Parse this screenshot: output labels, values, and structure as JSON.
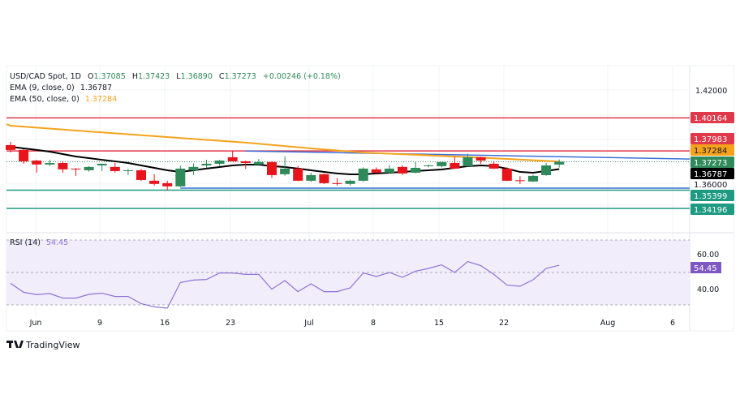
{
  "header": {
    "symbol": "USD/CAD Spot, 1D",
    "o_label": "O",
    "o": "1.37085",
    "h_label": "H",
    "h": "1.37423",
    "l_label": "L",
    "l": "1.36890",
    "c_label": "C",
    "c": "1.37273",
    "change": "+0.00246 (+0.18%)",
    "ema9_label": "EMA (9, close, 0)",
    "ema9_value": "1.36787",
    "ema50_label": "EMA (50, close, 0)",
    "ema50_value": "1.37284"
  },
  "rsi_header": {
    "label": "RSI (14)",
    "value": "54.45"
  },
  "brand": "TradingView",
  "colors": {
    "up": "#2f8a5a",
    "down": "#e8141c",
    "ema9": "#000000",
    "ema50": "#f7a21b",
    "resistance": "#e0394b",
    "support": "#1e9a82",
    "trend": "#3c6fd8",
    "rsi": "#8f74d6"
  },
  "chart_data": [
    {
      "type": "candlestick",
      "title": "USD/CAD Spot, 1D",
      "x_tick_labels": [
        "Jun",
        "9",
        "16",
        "23",
        "Jul",
        "8",
        "15",
        "22",
        "Aug",
        "6"
      ],
      "y_tick_labels": [
        "1.42000"
      ],
      "ohlc": [
        [
          1.3837,
          1.3858,
          1.3789,
          1.3805
        ],
        [
          1.3805,
          1.381,
          1.3714,
          1.373
        ],
        [
          1.3735,
          1.374,
          1.3655,
          1.3709
        ],
        [
          1.3709,
          1.374,
          1.37,
          1.3719
        ],
        [
          1.3719,
          1.373,
          1.3655,
          1.3677
        ],
        [
          1.3682,
          1.3685,
          1.3634,
          1.3677
        ],
        [
          1.3671,
          1.37,
          1.3662,
          1.3693
        ],
        [
          1.3703,
          1.3715,
          1.3665,
          1.3714
        ],
        [
          1.3693,
          1.372,
          1.3655,
          1.3666
        ],
        [
          1.3666,
          1.368,
          1.364,
          1.3671
        ],
        [
          1.3671,
          1.368,
          1.36,
          1.3607
        ],
        [
          1.3602,
          1.3645,
          1.357,
          1.3581
        ],
        [
          1.3586,
          1.3602,
          1.3538,
          1.3565
        ],
        [
          1.3565,
          1.37,
          1.356,
          1.3682
        ],
        [
          1.3671,
          1.3715,
          1.364,
          1.3693
        ],
        [
          1.3703,
          1.374,
          1.3685,
          1.3714
        ],
        [
          1.3714,
          1.374,
          1.37,
          1.3735
        ],
        [
          1.3757,
          1.38,
          1.373,
          1.373
        ],
        [
          1.373,
          1.3735,
          1.368,
          1.3719
        ],
        [
          1.3709,
          1.3745,
          1.37,
          1.3725
        ],
        [
          1.3725,
          1.373,
          1.362,
          1.3639
        ],
        [
          1.3645,
          1.3762,
          1.3635,
          1.3682
        ],
        [
          1.3682,
          1.37,
          1.36,
          1.3602
        ],
        [
          1.3602,
          1.3655,
          1.3595,
          1.3639
        ],
        [
          1.3645,
          1.365,
          1.358,
          1.3586
        ],
        [
          1.3586,
          1.362,
          1.357,
          1.3581
        ],
        [
          1.3581,
          1.361,
          1.357,
          1.3602
        ],
        [
          1.3602,
          1.369,
          1.3595,
          1.3682
        ],
        [
          1.3677,
          1.369,
          1.365,
          1.3655
        ],
        [
          1.3655,
          1.3705,
          1.365,
          1.3682
        ],
        [
          1.3693,
          1.3705,
          1.364,
          1.365
        ],
        [
          1.3655,
          1.3725,
          1.365,
          1.3687
        ],
        [
          1.3698,
          1.371,
          1.369,
          1.3703
        ],
        [
          1.3698,
          1.3725,
          1.369,
          1.3725
        ],
        [
          1.3719,
          1.376,
          1.368,
          1.3682
        ],
        [
          1.3698,
          1.378,
          1.3695,
          1.3757
        ],
        [
          1.3757,
          1.376,
          1.3714,
          1.3735
        ],
        [
          1.3714,
          1.373,
          1.368,
          1.3682
        ],
        [
          1.3682,
          1.369,
          1.36,
          1.3602
        ],
        [
          1.3605,
          1.3633,
          1.358,
          1.36
        ],
        [
          1.3597,
          1.364,
          1.3594,
          1.3634
        ],
        [
          1.3639,
          1.372,
          1.3635,
          1.3703
        ],
        [
          1.37085,
          1.37423,
          1.3689,
          1.37273
        ]
      ],
      "ema9": [
        1.3826,
        1.3815,
        1.3805,
        1.3794,
        1.3778,
        1.3762,
        1.3751,
        1.374,
        1.373,
        1.3719,
        1.3703,
        1.3687,
        1.3671,
        1.366,
        1.3671,
        1.3682,
        1.3692,
        1.3703,
        1.3708,
        1.3708,
        1.3698,
        1.3692,
        1.3682,
        1.3671,
        1.366,
        1.365,
        1.3644,
        1.3644,
        1.365,
        1.3655,
        1.366,
        1.3666,
        1.3671,
        1.3676,
        1.3687,
        1.3698,
        1.3703,
        1.3698,
        1.3682,
        1.366,
        1.3655,
        1.3666,
        1.36787
      ],
      "ema50_points": [
        [
          0,
          1.3965
        ],
        [
          6,
          1.3927
        ],
        [
          12,
          1.389
        ],
        [
          18,
          1.3853
        ],
        [
          23,
          1.3815
        ],
        [
          27,
          1.3788
        ],
        [
          34,
          1.3762
        ],
        [
          38,
          1.3746
        ],
        [
          42,
          1.37284
        ]
      ],
      "levels": [
        {
          "label": "1.40164",
          "value": 1.40164,
          "kind": "resistance"
        },
        {
          "label": "1.37983",
          "value": 1.37983,
          "kind": "resistance"
        },
        {
          "label": "1.37284",
          "value": 1.37284,
          "kind": "ema50"
        },
        {
          "label": "1.37273",
          "value": 1.37273,
          "kind": "last"
        },
        {
          "label": "1.36787",
          "value": 1.36787,
          "kind": "ema9"
        },
        {
          "label": "1.35399",
          "value": 1.35399,
          "kind": "support"
        },
        {
          "label": "1.34196",
          "value": 1.34196,
          "kind": "support"
        }
      ],
      "hidden_label": "1.36000",
      "trendline": {
        "from": [
          18,
          1.3798
        ],
        "to_axis_value": 1.3745
      },
      "flat_line": {
        "from_index": 13,
        "value": 1.3553
      },
      "ylim": [
        1.338,
        1.43
      ]
    },
    {
      "type": "line",
      "title": "RSI (14)",
      "y_tick_labels": [
        "60.00",
        "40.00"
      ],
      "band": [
        30,
        70
      ],
      "midline": 50,
      "ylim": [
        30,
        70
      ],
      "values": [
        43.3,
        37.8,
        36.3,
        37.0,
        34.2,
        34.2,
        36.5,
        37.2,
        35.2,
        35.2,
        30.8,
        28.8,
        28.0,
        43.8,
        45.3,
        45.7,
        49.7,
        49.7,
        48.8,
        48.8,
        39.7,
        45.0,
        38.2,
        43.0,
        38.2,
        38.2,
        40.5,
        49.7,
        47.5,
        50.0,
        47.0,
        50.8,
        52.5,
        54.7,
        50.0,
        56.7,
        54.2,
        48.8,
        42.2,
        41.5,
        45.5,
        52.5,
        54.45
      ]
    }
  ]
}
